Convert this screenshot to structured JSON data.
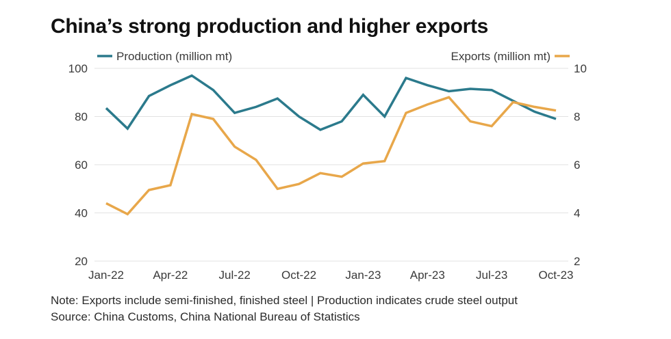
{
  "colors": {
    "production": "#2b7a8c",
    "exports": "#e8a74a",
    "grid": "#e2e2e2"
  },
  "title": "China’s strong production and higher exports",
  "notes": {
    "note": "Note: Exports include semi-finished, finished steel | Production indicates crude steel output",
    "source": "Source: China Customs, China National Bureau of Statistics"
  },
  "chart_data": {
    "type": "line",
    "title": "China’s strong production and higher exports",
    "x": [
      "Jan-22",
      "Feb-22",
      "Mar-22",
      "Apr-22",
      "May-22",
      "Jun-22",
      "Jul-22",
      "Aug-22",
      "Sep-22",
      "Oct-22",
      "Nov-22",
      "Dec-22",
      "Jan-23",
      "Feb-23",
      "Mar-23",
      "Apr-23",
      "May-23",
      "Jun-23",
      "Jul-23",
      "Aug-23",
      "Sep-23",
      "Oct-23"
    ],
    "x_tick_labels": [
      "Jan-22",
      "Apr-22",
      "Jul-22",
      "Oct-22",
      "Jan-23",
      "Apr-23",
      "Jul-23",
      "Oct-23"
    ],
    "series": [
      {
        "name": "Production (million mt)",
        "axis": "left",
        "values": [
          83.5,
          75,
          88.5,
          93,
          97,
          91,
          81.5,
          84,
          87.5,
          80,
          74.5,
          78,
          89,
          80,
          96,
          93,
          90.5,
          91.5,
          91,
          86.5,
          82,
          79
        ]
      },
      {
        "name": "Exports (million mt)",
        "axis": "right",
        "values": [
          4.4,
          3.95,
          4.95,
          5.15,
          8.1,
          7.9,
          6.75,
          6.2,
          5.0,
          5.2,
          5.65,
          5.5,
          6.05,
          6.15,
          8.15,
          8.5,
          8.8,
          7.8,
          7.6,
          8.6,
          8.4,
          8.25
        ]
      }
    ],
    "y_left": {
      "label": "",
      "ylim": [
        20,
        100
      ],
      "ticks": [
        20,
        40,
        60,
        80,
        100
      ]
    },
    "y_right": {
      "label": "",
      "ylim": [
        2,
        10
      ],
      "ticks": [
        2,
        4,
        6,
        8,
        10
      ]
    },
    "grid": true,
    "legend": "top"
  }
}
